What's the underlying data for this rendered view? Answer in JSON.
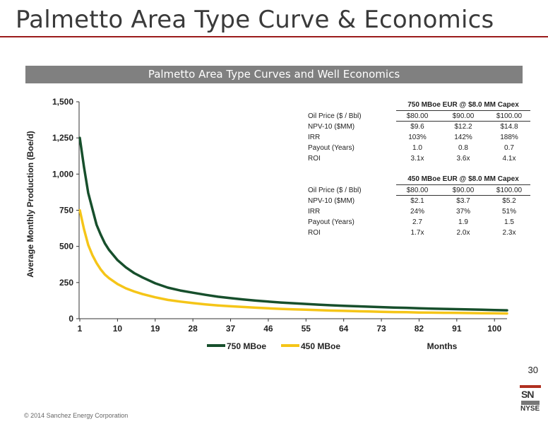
{
  "slide": {
    "title": "Palmetto Area Type Curve & Economics",
    "page_number": "30",
    "copyright": "© 2014 Sanchez Energy Corporation",
    "logo_text_top": "SN",
    "logo_text_bottom": "NYSE"
  },
  "colors": {
    "title_rule": "#9b1b1b",
    "banner_bg": "#808080",
    "series_750": "#174f2c",
    "series_450": "#f5c518"
  },
  "economics_tables": [
    {
      "header": "750 MBoe EUR @ $8.0 MM Capex",
      "rows": [
        {
          "label": "Oil Price ($ / Bbl)",
          "v1": "$80.00",
          "v2": "$90.00",
          "v3": "$100.00"
        },
        {
          "label": "NPV-10 ($MM)",
          "v1": "$9.6",
          "v2": "$12.2",
          "v3": "$14.8"
        },
        {
          "label": "IRR",
          "v1": "103%",
          "v2": "142%",
          "v3": "188%"
        },
        {
          "label": "Payout (Years)",
          "v1": "1.0",
          "v2": "0.8",
          "v3": "0.7"
        },
        {
          "label": "ROI",
          "v1": "3.1x",
          "v2": "3.6x",
          "v3": "4.1x"
        }
      ]
    },
    {
      "header": "450 MBoe EUR @ $8.0 MM Capex",
      "rows": [
        {
          "label": "Oil Price ($ / Bbl)",
          "v1": "$80.00",
          "v2": "$90.00",
          "v3": "$100.00"
        },
        {
          "label": "NPV-10 ($MM)",
          "v1": "$2.1",
          "v2": "$3.7",
          "v3": "$5.2"
        },
        {
          "label": "IRR",
          "v1": "24%",
          "v2": "37%",
          "v3": "51%"
        },
        {
          "label": "Payout (Years)",
          "v1": "2.7",
          "v2": "1.9",
          "v3": "1.5"
        },
        {
          "label": "ROI",
          "v1": "1.7x",
          "v2": "2.0x",
          "v3": "2.3x"
        }
      ]
    }
  ],
  "chart_data": {
    "type": "line",
    "title": "Palmetto Area Type Curves and Well Economics",
    "xlabel": "Months",
    "ylabel": "Average Monthly Production (Boe/d)",
    "xlim": [
      1,
      103
    ],
    "ylim": [
      0,
      1500
    ],
    "x_ticks": [
      1,
      10,
      19,
      28,
      37,
      46,
      55,
      64,
      73,
      82,
      91,
      100
    ],
    "x_tick_labels": [
      "1",
      "10",
      "19",
      "28",
      "37",
      "46",
      "55",
      "64",
      "73",
      "82",
      "91",
      "100"
    ],
    "y_ticks": [
      0,
      250,
      500,
      750,
      1000,
      1250,
      1500
    ],
    "y_tick_labels": [
      "0",
      "250",
      "500",
      "750",
      "1,000",
      "1,250",
      "1,500"
    ],
    "grid": false,
    "legend_position": "bottom-left",
    "x": [
      1,
      2,
      3,
      4,
      5,
      6,
      7,
      8,
      10,
      12,
      14,
      16,
      19,
      22,
      25,
      28,
      31,
      34,
      37,
      40,
      43,
      46,
      49,
      52,
      55,
      58,
      61,
      64,
      67,
      70,
      73,
      76,
      79,
      82,
      85,
      88,
      91,
      94,
      97,
      100,
      103
    ],
    "series": [
      {
        "name": "750 MBoe",
        "values": [
          1250,
          1050,
          870,
          760,
          650,
          580,
          520,
          475,
          405,
          355,
          315,
          285,
          245,
          215,
          195,
          180,
          165,
          152,
          142,
          133,
          125,
          118,
          112,
          107,
          102,
          97,
          93,
          89,
          86,
          83,
          80,
          77,
          75,
          72,
          70,
          68,
          66,
          64,
          62,
          60,
          58
        ]
      },
      {
        "name": "450 MBoe",
        "values": [
          750,
          620,
          510,
          440,
          385,
          340,
          305,
          280,
          240,
          210,
          188,
          170,
          148,
          130,
          118,
          108,
          99,
          92,
          86,
          81,
          76,
          72,
          68,
          65,
          62,
          59,
          56,
          54,
          52,
          50,
          48,
          46,
          45,
          43,
          42,
          41,
          40,
          39,
          38,
          37,
          36
        ]
      }
    ]
  }
}
